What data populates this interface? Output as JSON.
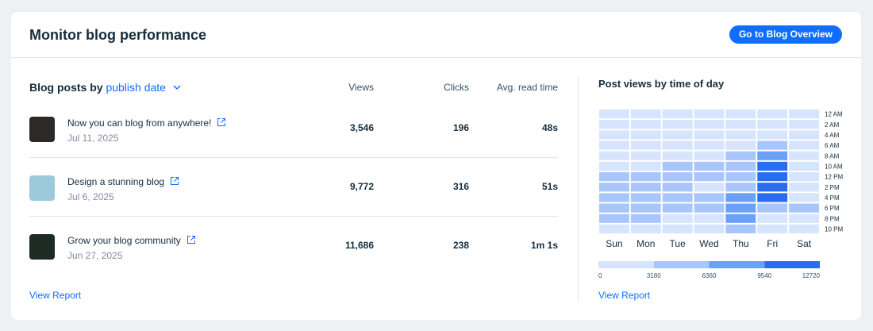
{
  "header": {
    "title": "Monitor blog performance",
    "button": "Go to Blog Overview"
  },
  "table": {
    "heading_prefix": "Blog posts by",
    "heading_sort": "publish date",
    "columns": [
      "Views",
      "Clicks",
      "Avg. read time"
    ],
    "rows": [
      {
        "title": "Now you can blog from anywhere!",
        "date": "Jul 11, 2025",
        "cells": [
          "3,546",
          "196",
          "48s"
        ]
      },
      {
        "title": "Design a stunning blog",
        "date": "Jul 6, 2025",
        "cells": [
          "9,772",
          "316",
          "51s"
        ]
      },
      {
        "title": "Grow your blog community",
        "date": "Jun 27, 2025",
        "cells": [
          "11,686",
          "238",
          "1m 1s"
        ]
      }
    ],
    "link": "View Report"
  },
  "chart_data": {
    "type": "heatmap",
    "title": "Post views by time of day",
    "x": [
      "Sun",
      "Mon",
      "Tue",
      "Wed",
      "Thu",
      "Fri",
      "Sat"
    ],
    "y": [
      "12 AM",
      "2 AM",
      "4 AM",
      "6 AM",
      "8 AM",
      "10 AM",
      "12 PM",
      "2 PM",
      "4 PM",
      "6 PM",
      "8 PM",
      "10 PM"
    ],
    "values": [
      [
        1590,
        1590,
        1590,
        1590,
        1590,
        1590,
        1590
      ],
      [
        1590,
        1590,
        1590,
        1590,
        1590,
        1590,
        1590
      ],
      [
        1590,
        1590,
        1590,
        1590,
        1590,
        1590,
        1590
      ],
      [
        1590,
        1590,
        1590,
        1590,
        1590,
        4770,
        1590
      ],
      [
        1590,
        1590,
        1590,
        1590,
        4770,
        7950,
        1590
      ],
      [
        1590,
        1590,
        4770,
        4770,
        4770,
        11130,
        1590
      ],
      [
        4770,
        4770,
        4770,
        4770,
        4770,
        11130,
        1590
      ],
      [
        4770,
        4770,
        4770,
        1590,
        4770,
        11130,
        1590
      ],
      [
        4770,
        4770,
        4770,
        4770,
        7950,
        11130,
        1590
      ],
      [
        4770,
        4770,
        4770,
        4770,
        7950,
        4770,
        4770
      ],
      [
        4770,
        4770,
        1590,
        1590,
        7950,
        1590,
        1590
      ],
      [
        1590,
        1590,
        1590,
        1590,
        4770,
        1590,
        1590
      ]
    ],
    "colors": [
      "#d6e4fd",
      "#a8c6fb",
      "#6aa0f6",
      "#2a6cf0"
    ],
    "scale_ticks": [
      0,
      3180,
      6360,
      9540,
      12720
    ],
    "link": "View Report"
  }
}
